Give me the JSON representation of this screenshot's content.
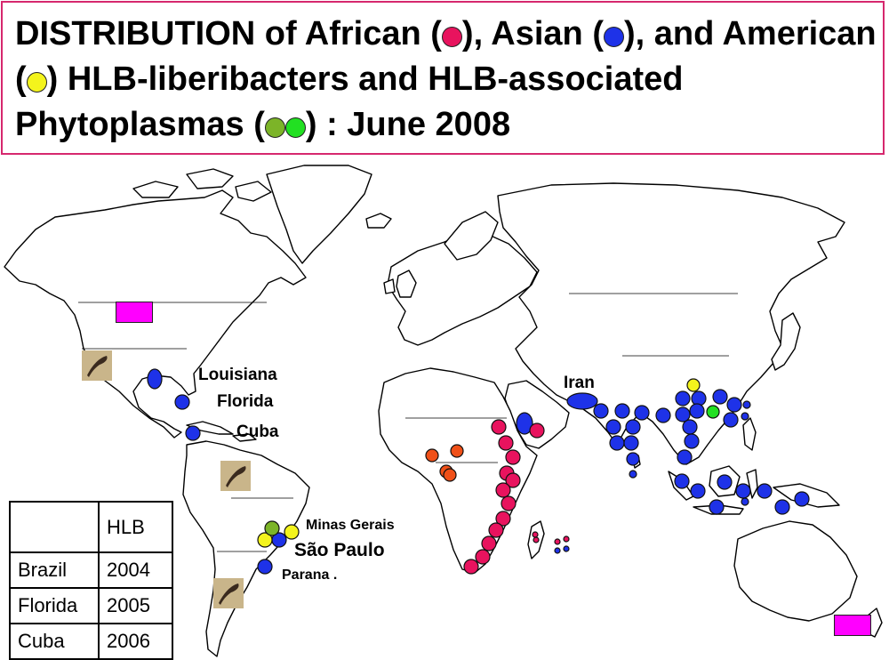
{
  "title": {
    "part1": "DISTRIBUTION of African (",
    "part2": "), Asian (",
    "part3": "), and American (",
    "part4": ") HLB-liberibacters and HLB-associated Phytoplasmas (",
    "part5": ") : June 2008"
  },
  "legend_colors": {
    "african": "#e8135e",
    "asian": "#1e32e8",
    "american": "#f4f41c",
    "phytoplasma_1": "#7cb428",
    "phytoplasma_2": "#22e022",
    "phytoplasma_rect": "#ff00ff",
    "west_africa": "#f05018"
  },
  "places": {
    "louisiana": "Louisiana",
    "florida": "Florida",
    "cuba": "Cuba",
    "iran": "Iran",
    "minas_gerais": "Minas Gerais",
    "sao_paulo": "São Paulo",
    "parana": "Parana ."
  },
  "table": {
    "header": "HLB",
    "rows": [
      {
        "place": "Brazil",
        "year": "2004"
      },
      {
        "place": "Florida",
        "year": "2005"
      },
      {
        "place": "Cuba",
        "year": "2006"
      }
    ]
  }
}
